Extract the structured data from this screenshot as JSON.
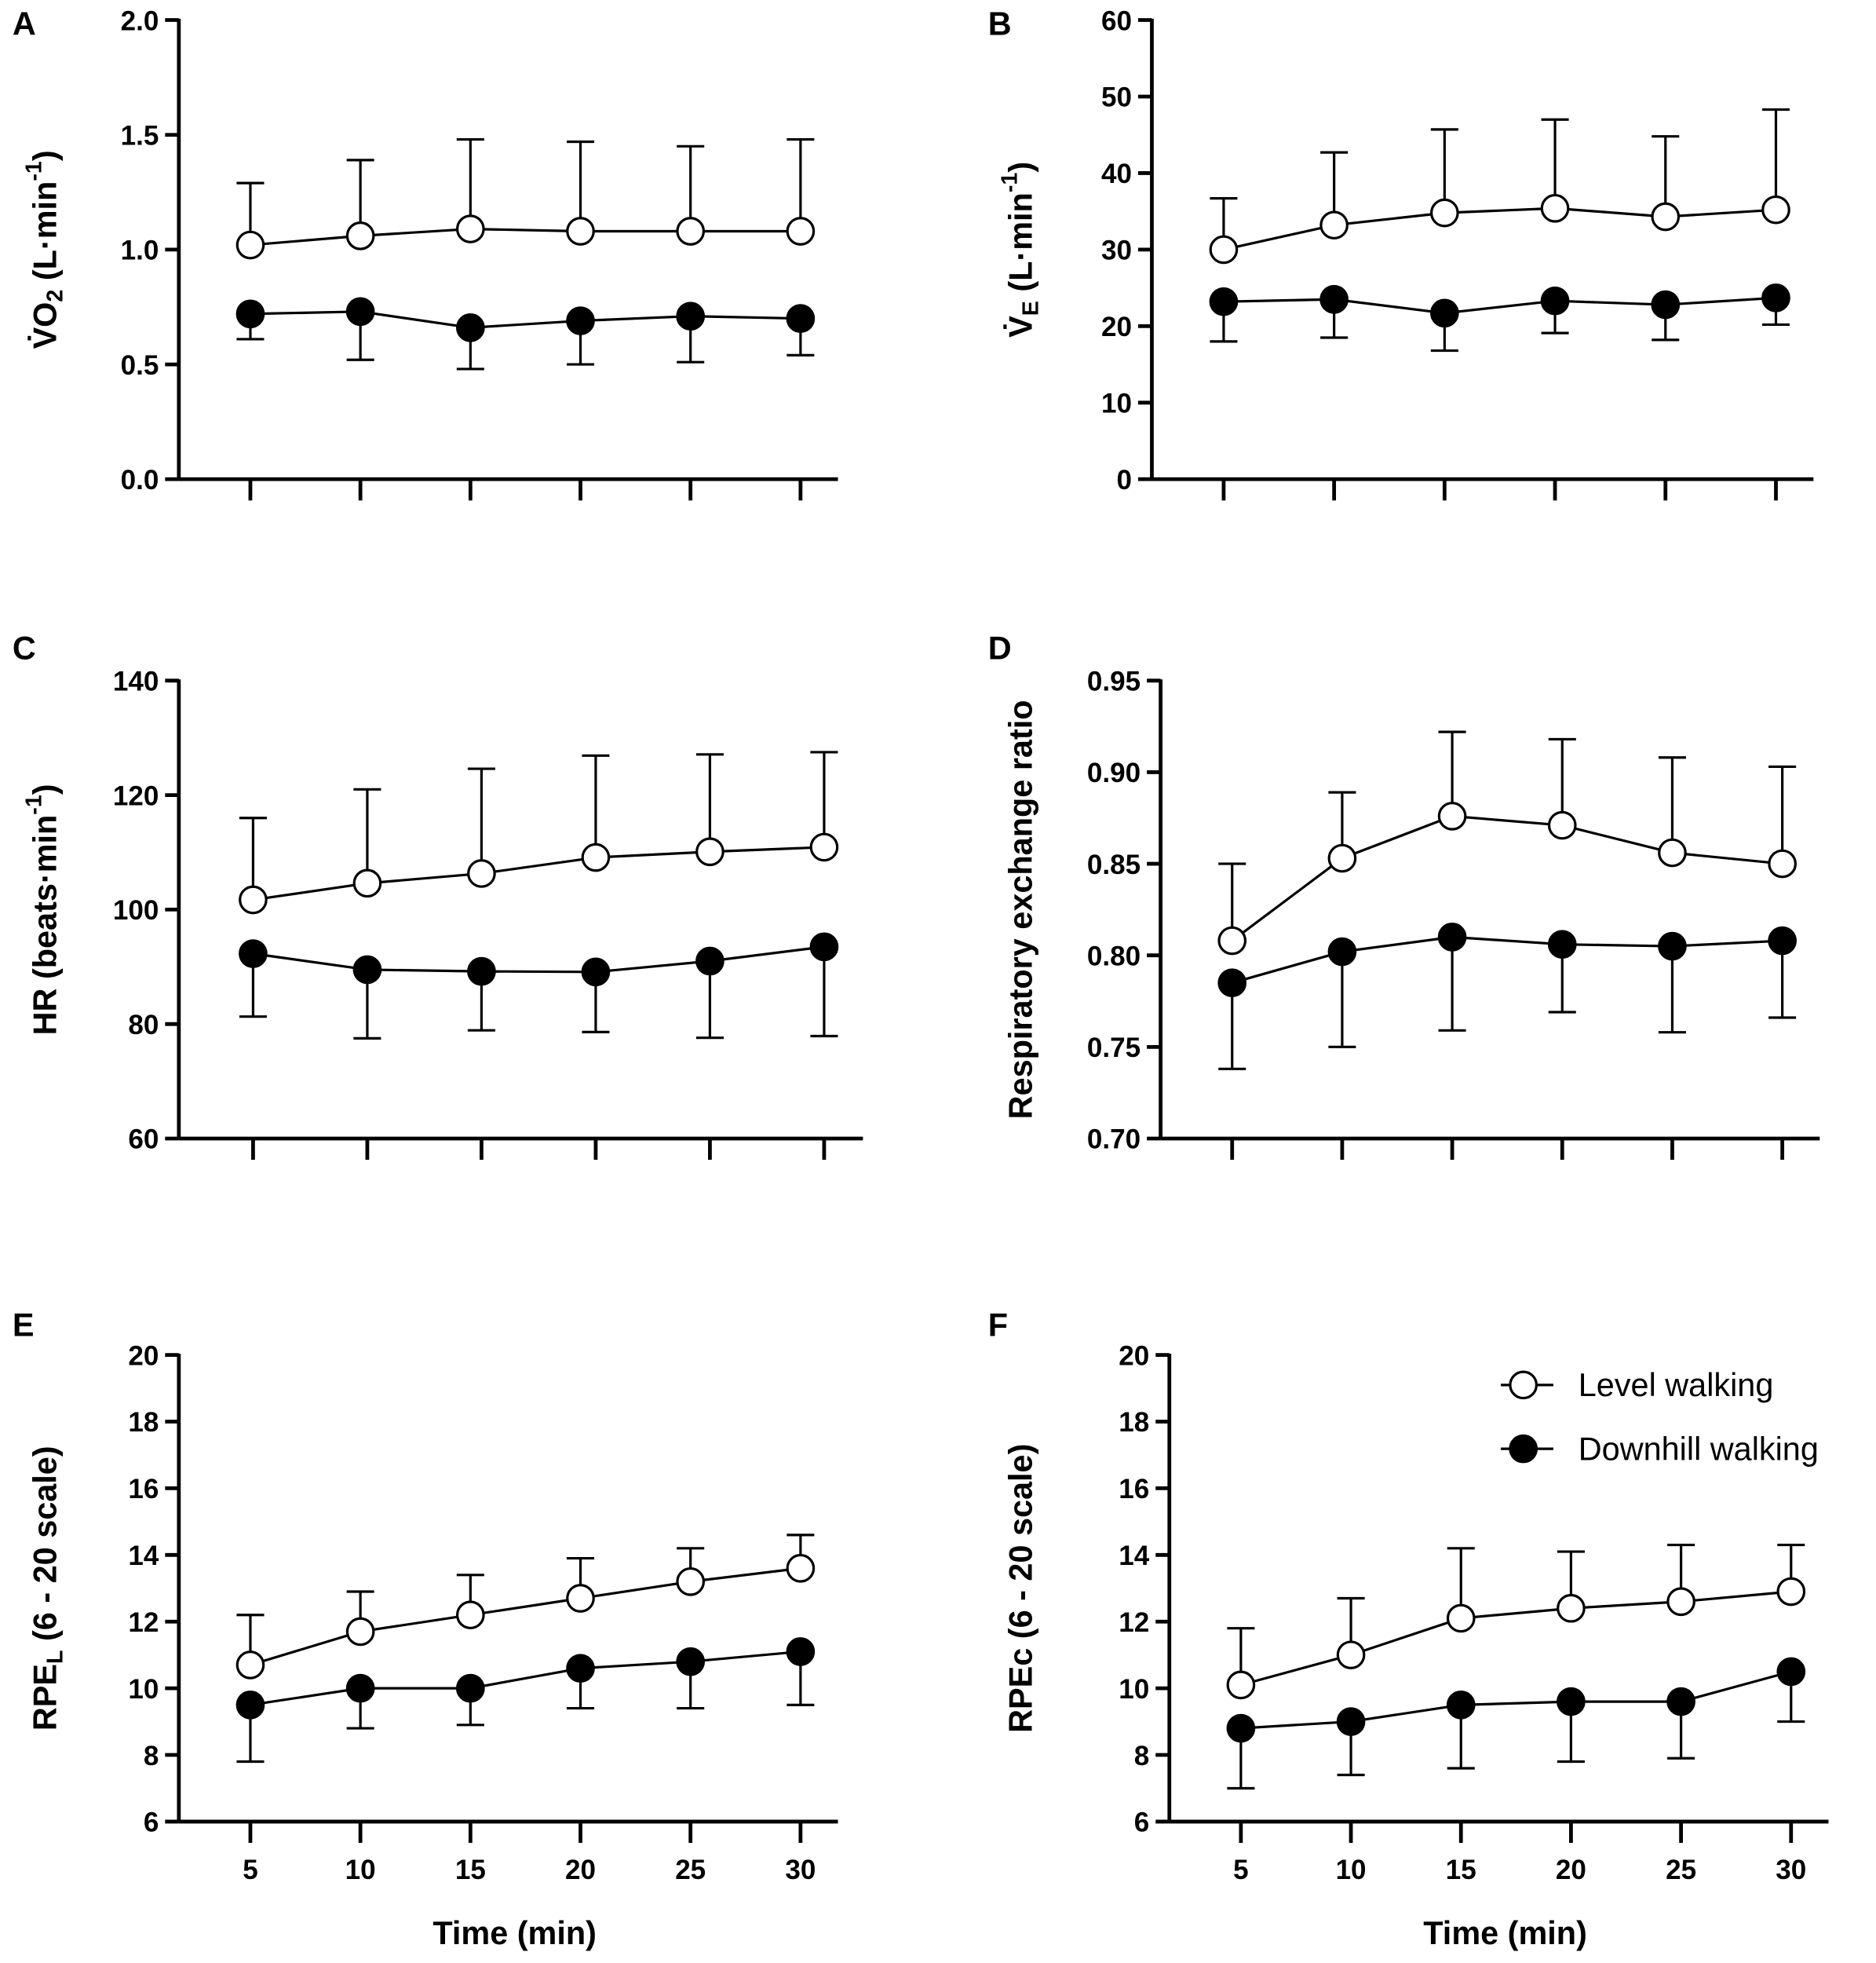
{
  "chart_data": [
    {
      "type": "line",
      "panel_label": "A",
      "ylabel": [
        {
          "text": "V̇O"
        },
        {
          "text": "2",
          "shift": "sub"
        },
        {
          "text": " (L·min"
        },
        {
          "text": "-1",
          "shift": "sup"
        },
        {
          "text": ")"
        }
      ],
      "x": [
        5,
        10,
        15,
        20,
        25,
        30
      ],
      "xlim": [
        1.75,
        31.7
      ],
      "xticks": [
        5,
        10,
        15,
        20,
        25,
        30
      ],
      "show_xtick_labels": false,
      "ylim": [
        0,
        2
      ],
      "yticks": [
        {
          "value": 0,
          "label": "0.0"
        },
        {
          "value": 0.5,
          "label": "0.5"
        },
        {
          "value": 1,
          "label": "1.0"
        },
        {
          "value": 1.5,
          "label": "1.5"
        },
        {
          "value": 2,
          "label": "2.0"
        }
      ],
      "series": [
        {
          "color": "#ffffff",
          "values": [
            1.02,
            1.06,
            1.09,
            1.08,
            1.08,
            1.08
          ],
          "errors": [
            0.27,
            0.33,
            0.39,
            0.39,
            0.37,
            0.4
          ],
          "error_direction": "up"
        },
        {
          "color": "#000000",
          "values": [
            0.72,
            0.73,
            0.66,
            0.69,
            0.71,
            0.7
          ],
          "errors": [
            0.11,
            0.21,
            0.18,
            0.19,
            0.2,
            0.16
          ],
          "error_direction": "down"
        }
      ]
    },
    {
      "type": "line",
      "panel_label": "B",
      "ylabel": [
        {
          "text": "V̇"
        },
        {
          "text": "E",
          "shift": "sub"
        },
        {
          "text": " (L·min"
        },
        {
          "text": "-1",
          "shift": "sup"
        },
        {
          "text": ")"
        }
      ],
      "x": [
        5,
        10,
        15,
        20,
        25,
        30
      ],
      "xlim": [
        1.75,
        31.7
      ],
      "xticks": [
        5,
        10,
        15,
        20,
        25,
        30
      ],
      "show_xtick_labels": false,
      "ylim": [
        0,
        60
      ],
      "yticks": [
        0,
        10,
        20,
        30,
        40,
        50,
        60
      ],
      "series": [
        {
          "color": "#ffffff",
          "values": [
            30.0,
            33.2,
            34.8,
            35.4,
            34.3,
            35.2
          ],
          "errors": [
            6.7,
            9.5,
            10.9,
            11.6,
            10.5,
            13.1
          ],
          "error_direction": "up"
        },
        {
          "color": "#000000",
          "values": [
            23.2,
            23.5,
            21.7,
            23.3,
            22.8,
            23.7
          ],
          "errors": [
            5.2,
            5.0,
            4.9,
            4.2,
            4.6,
            3.5
          ],
          "error_direction": "down"
        }
      ]
    },
    {
      "type": "line",
      "panel_label": "C",
      "ylabel": [
        {
          "text": "HR (beats·min"
        },
        {
          "text": "-1",
          "shift": "sup"
        },
        {
          "text": ")"
        }
      ],
      "x": [
        5,
        10,
        15,
        20,
        25,
        30
      ],
      "xlim": [
        1.75,
        31.7
      ],
      "xticks": [
        5,
        10,
        15,
        20,
        25,
        30
      ],
      "show_xtick_labels": false,
      "ylim": [
        60,
        140
      ],
      "yticks": [
        60,
        80,
        100,
        120,
        140
      ],
      "series": [
        {
          "color": "#ffffff",
          "values": [
            101.7,
            104.6,
            106.3,
            109.1,
            110.1,
            110.9
          ],
          "errors": [
            14.3,
            16.4,
            18.3,
            17.8,
            17.0,
            16.6
          ],
          "error_direction": "up"
        },
        {
          "color": "#000000",
          "values": [
            92.3,
            89.5,
            89.2,
            89.1,
            91.0,
            93.5
          ],
          "errors": [
            11.0,
            12.0,
            10.3,
            10.5,
            13.4,
            15.6
          ],
          "error_direction": "down"
        }
      ]
    },
    {
      "type": "line",
      "panel_label": "D",
      "ylabel": [
        {
          "text": "Respiratory exchange ratio"
        }
      ],
      "x": [
        5,
        10,
        15,
        20,
        25,
        30
      ],
      "xlim": [
        1.75,
        31.7
      ],
      "xticks": [
        5,
        10,
        15,
        20,
        25,
        30
      ],
      "show_xtick_labels": false,
      "ylim": [
        0.7,
        0.95
      ],
      "yticks": [
        {
          "value": 0.7,
          "label": "0.70"
        },
        0.75,
        {
          "value": 0.8,
          "label": "0.80"
        },
        0.85,
        {
          "value": 0.9,
          "label": "0.90"
        },
        0.95
      ],
      "series": [
        {
          "color": "#ffffff",
          "values": [
            0.808,
            0.853,
            0.876,
            0.871,
            0.856,
            0.85
          ],
          "errors": [
            0.042,
            0.036,
            0.046,
            0.047,
            0.052,
            0.053
          ],
          "error_direction": "up"
        },
        {
          "color": "#000000",
          "values": [
            0.785,
            0.802,
            0.81,
            0.806,
            0.805,
            0.808
          ],
          "errors": [
            0.047,
            0.052,
            0.051,
            0.037,
            0.047,
            0.042
          ],
          "error_direction": "down"
        }
      ]
    },
    {
      "type": "line",
      "panel_label": "E",
      "ylabel": [
        {
          "text": "RPE"
        },
        {
          "text": "L",
          "shift": "sub"
        },
        {
          "text": " (6 - 20 scale)"
        }
      ],
      "xlabel": "Time (min)",
      "x": [
        5,
        10,
        15,
        20,
        25,
        30
      ],
      "xlim": [
        1.75,
        31.7
      ],
      "xticks": [
        5,
        10,
        15,
        20,
        25,
        30
      ],
      "show_xtick_labels": true,
      "ylim": [
        6,
        20
      ],
      "yticks": [
        6,
        8,
        10,
        12,
        14,
        16,
        18,
        20
      ],
      "series": [
        {
          "color": "#ffffff",
          "values": [
            10.7,
            11.7,
            12.2,
            12.7,
            13.2,
            13.6
          ],
          "errors": [
            1.5,
            1.2,
            1.2,
            1.2,
            1.0,
            1.0
          ],
          "error_direction": "up"
        },
        {
          "color": "#000000",
          "values": [
            9.5,
            10.0,
            10.0,
            10.6,
            10.8,
            11.1
          ],
          "errors": [
            1.7,
            1.2,
            1.1,
            1.2,
            1.4,
            1.6
          ],
          "error_direction": "down"
        }
      ]
    },
    {
      "type": "line",
      "panel_label": "F",
      "ylabel": [
        {
          "text": "RPEc (6 - 20 scale)"
        }
      ],
      "xlabel": "Time (min)",
      "x": [
        5,
        10,
        15,
        20,
        25,
        30
      ],
      "xlim": [
        1.75,
        31.7
      ],
      "xticks": [
        5,
        10,
        15,
        20,
        25,
        30
      ],
      "show_xtick_labels": true,
      "ylim": [
        6,
        20
      ],
      "yticks": [
        6,
        8,
        10,
        12,
        14,
        16,
        18,
        20
      ],
      "legend": "upper right",
      "series": [
        {
          "name": "Level walking",
          "color": "#ffffff",
          "values": [
            10.1,
            11.0,
            12.1,
            12.4,
            12.6,
            12.9
          ],
          "errors": [
            1.7,
            1.7,
            2.1,
            1.7,
            1.7,
            1.4
          ],
          "error_direction": "up"
        },
        {
          "name": "Downhill walking",
          "color": "#000000",
          "values": [
            8.8,
            9.0,
            9.5,
            9.6,
            9.6,
            10.5
          ],
          "errors": [
            1.8,
            1.6,
            1.9,
            1.8,
            1.7,
            1.5
          ],
          "error_direction": "down"
        }
      ]
    }
  ]
}
